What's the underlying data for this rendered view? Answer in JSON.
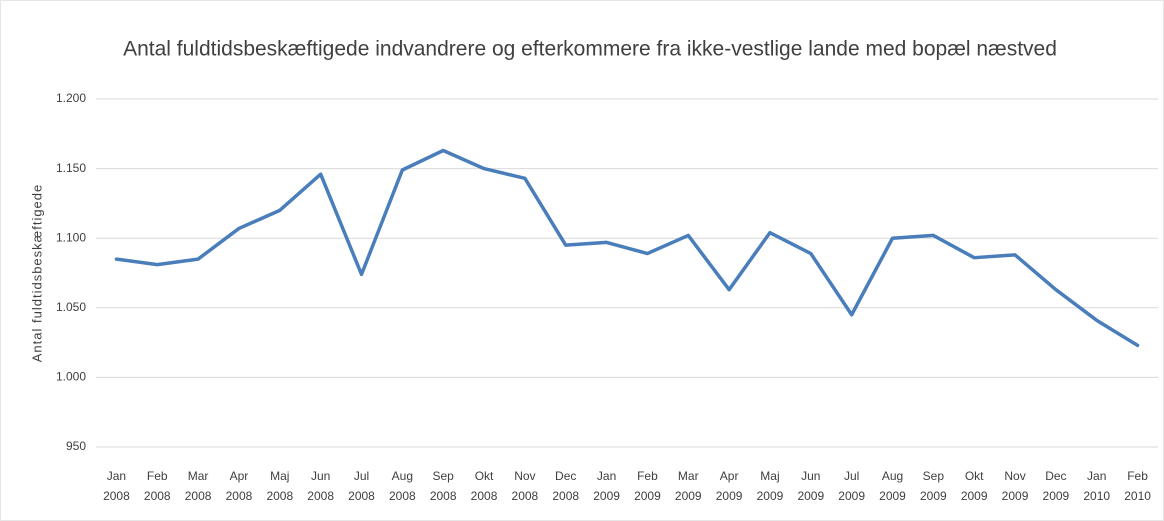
{
  "chart_data": {
    "type": "line",
    "title": "Antal fuldtidsbeskæftigede indvandrere og efterkommere fra ikke-vestlige lande med bopæl næstved",
    "y_label": "Antal fuldtidsbeskæftigede",
    "categories": [
      "Jan 2008",
      "Feb 2008",
      "Mar 2008",
      "Apr 2008",
      "Maj 2008",
      "Jun 2008",
      "Jul 2008",
      "Aug 2008",
      "Sep 2008",
      "Okt 2008",
      "Nov 2008",
      "Dec 2008",
      "Jan 2009",
      "Feb 2009",
      "Mar 2009",
      "Apr 2009",
      "Maj 2009",
      "Jun 2009",
      "Jul 2009",
      "Aug 2009",
      "Sep 2009",
      "Okt 2009",
      "Nov 2009",
      "Dec 2009",
      "Jan 2010",
      "Feb 2010"
    ],
    "series": [
      {
        "color": "#4a7ebb",
        "values": [
          1085,
          1081,
          1085,
          1107,
          1120,
          1146,
          1074,
          1149,
          1163,
          1150,
          1143,
          1095,
          1097,
          1089,
          1102,
          1063,
          1104,
          1089,
          1045,
          1100,
          1102,
          1086,
          1088,
          1063,
          1041,
          1023
        ]
      }
    ],
    "ylim": [
      950,
      1200
    ],
    "yticks": [
      950,
      {
        "value": 1000,
        "label": "1.000"
      },
      {
        "value": 1050,
        "label": "1.050"
      },
      {
        "value": 1100,
        "label": "1.100"
      },
      {
        "value": 1150,
        "label": "1.150"
      },
      {
        "value": 1200,
        "label": "1.200"
      }
    ],
    "grid": true
  }
}
